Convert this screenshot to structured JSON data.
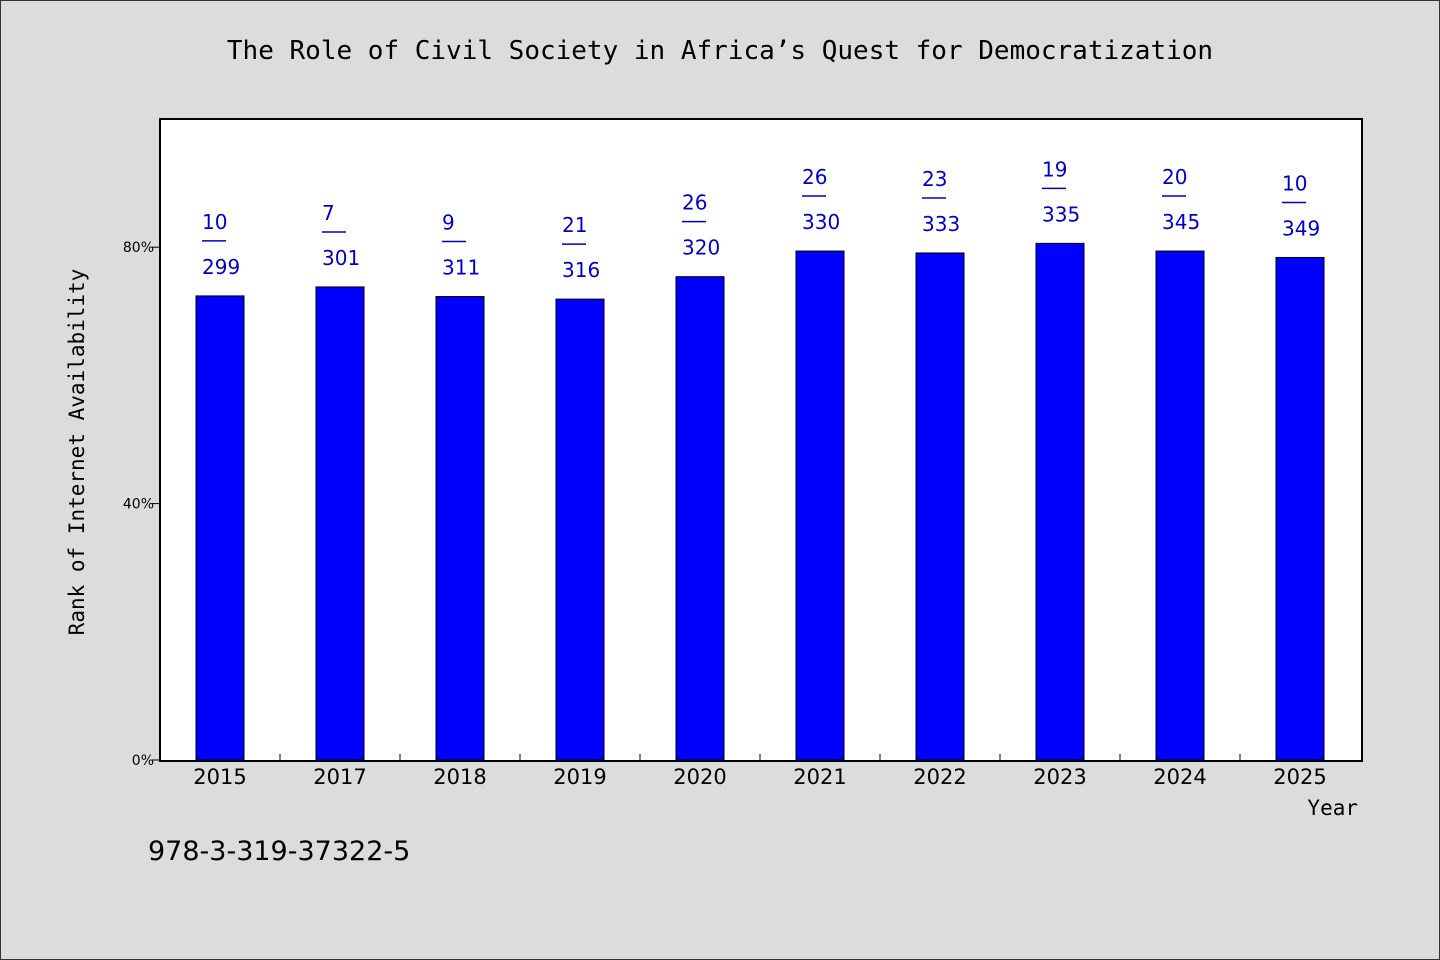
{
  "chart_data": {
    "type": "bar",
    "title": "The Role of Civil Society in Africa’s Quest for Democratization",
    "xlabel": "Year",
    "ylabel": "Rank of Internet Availability",
    "ylim": [
      0,
      100
    ],
    "yticks": [
      0,
      40,
      80
    ],
    "ytick_labels": [
      "0%",
      "40%",
      "80%"
    ],
    "grid": false,
    "categories": [
      "2015",
      "2017",
      "2018",
      "2019",
      "2020",
      "2021",
      "2022",
      "2023",
      "2024",
      "2025"
    ],
    "values": [
      72.4,
      73.8,
      72.3,
      71.9,
      75.4,
      79.4,
      79.1,
      80.6,
      79.4,
      78.4
    ],
    "numerators": [
      "10",
      "7",
      "9",
      "21",
      "26",
      "26",
      "23",
      "19",
      "20",
      "10"
    ],
    "denominators": [
      "299",
      "301",
      "311",
      "316",
      "320",
      "330",
      "333",
      "335",
      "345",
      "349"
    ],
    "bar_color": "#0000ff",
    "label_color": "#0000cc"
  },
  "footer": {
    "isbn": "978-3-319-37322-5"
  }
}
